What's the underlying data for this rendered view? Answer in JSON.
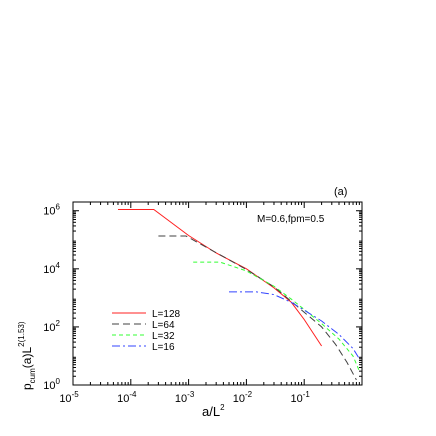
{
  "chart_data": {
    "type": "line",
    "panel_label": "(a)",
    "annotation": "M=0.6,fpm=0.5",
    "xlabel": "a/L^2",
    "ylabel": "p_cum(a)L^2(1.53)",
    "x_scale": "log",
    "y_scale": "log",
    "xlim": [
      1e-05,
      1.0
    ],
    "ylim": [
      1.0,
      2000000.0
    ],
    "x_ticks": [
      {
        "value": 1e-05,
        "base": "10",
        "exp": "-5"
      },
      {
        "value": 0.0001,
        "base": "10",
        "exp": "-4"
      },
      {
        "value": 0.001,
        "base": "10",
        "exp": "-3"
      },
      {
        "value": 0.01,
        "base": "10",
        "exp": "-2"
      },
      {
        "value": 0.1,
        "base": "10",
        "exp": "-1"
      }
    ],
    "y_ticks": [
      {
        "value": 1,
        "base": "10",
        "exp": "0"
      },
      {
        "value": 100,
        "base": "10",
        "exp": "2"
      },
      {
        "value": 10000,
        "base": "10",
        "exp": "4"
      },
      {
        "value": 1000000,
        "base": "10",
        "exp": "6"
      }
    ],
    "grid": false,
    "legend_position": "bottom-left",
    "series": [
      {
        "name": "L=128",
        "color": "#ff2020",
        "dash": "",
        "points": [
          [
            6e-05,
            1100000.0
          ],
          [
            0.00025,
            1100000.0
          ],
          [
            0.001,
            140000.0
          ],
          [
            0.003,
            35000.0
          ],
          [
            0.01,
            10000.0
          ],
          [
            0.03,
            2200.0
          ],
          [
            0.06,
            700.0
          ],
          [
            0.1,
            180.0
          ],
          [
            0.2,
            22
          ]
        ]
      },
      {
        "name": "L=64",
        "color": "#404040",
        "dash": "7,4",
        "points": [
          [
            0.0003,
            135000.0
          ],
          [
            0.0009,
            135000.0
          ],
          [
            0.003,
            36000.0
          ],
          [
            0.01,
            9500.0
          ],
          [
            0.03,
            2400.0
          ],
          [
            0.06,
            750.0
          ],
          [
            0.1,
            320.0
          ],
          [
            0.2,
            100.0
          ],
          [
            0.35,
            25
          ],
          [
            0.55,
            6
          ],
          [
            0.8,
            1.5
          ]
        ]
      },
      {
        "name": "L=32",
        "color": "#33ff33",
        "dash": "4,3",
        "points": [
          [
            0.0012,
            17000.0
          ],
          [
            0.0035,
            17000.0
          ],
          [
            0.01,
            8500.0
          ],
          [
            0.03,
            2500.0
          ],
          [
            0.06,
            900.0
          ],
          [
            0.1,
            400.0
          ],
          [
            0.2,
            130.0
          ],
          [
            0.4,
            38
          ],
          [
            0.7,
            10
          ],
          [
            0.9,
            3
          ]
        ]
      },
      {
        "name": "L=16",
        "color": "#3344ff",
        "dash": "8,3,2,3",
        "points": [
          [
            0.005,
            1600.0
          ],
          [
            0.015,
            1600.0
          ],
          [
            0.03,
            1300.0
          ],
          [
            0.06,
            700.0
          ],
          [
            0.1,
            380.0
          ],
          [
            0.2,
            160.0
          ],
          [
            0.4,
            55
          ],
          [
            0.7,
            18
          ],
          [
            0.9,
            8
          ]
        ]
      }
    ]
  }
}
